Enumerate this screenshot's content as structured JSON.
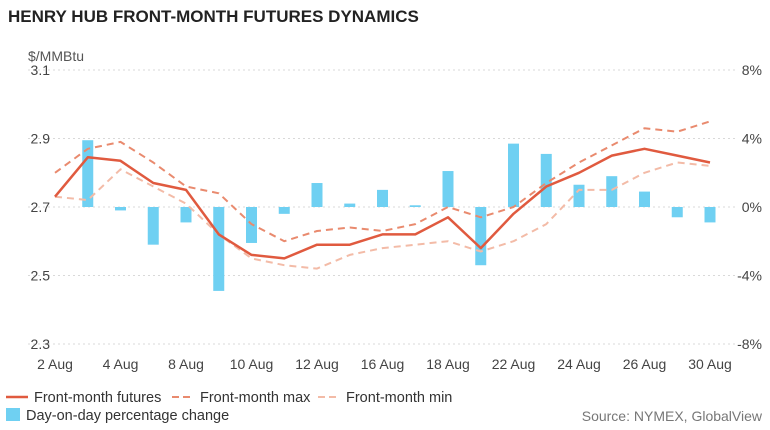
{
  "chart_data": {
    "type": "line",
    "title": "HENRY HUB FRONT-MONTH FUTURES DYNAMICS",
    "ylabel": "$/MMBtu",
    "source": "Source: NYMEX, GlobalView",
    "x_tick_labels": [
      "2 Aug",
      "4 Aug",
      "8 Aug",
      "10 Aug",
      "12 Aug",
      "16 Aug",
      "18 Aug",
      "22 Aug",
      "24 Aug",
      "26 Aug",
      "30 Aug"
    ],
    "left_axis": {
      "ylim": [
        2.3,
        3.1
      ],
      "ticks": [
        "2.3",
        "2.5",
        "2.7",
        "2.9",
        "3.1"
      ]
    },
    "right_axis": {
      "ylim": [
        -8,
        8
      ],
      "ticks": [
        "-8%",
        "-4%",
        "0%",
        "4%",
        "8%"
      ]
    },
    "grid": true,
    "legend_position": "bottom",
    "colors": {
      "futures": "#e05a3f",
      "max": "#e98a6e",
      "min": "#f3bba7",
      "change": "#6fd0f2"
    },
    "series": [
      {
        "name": "Front-month futures",
        "style": "solid",
        "values": [
          2.73,
          2.845,
          2.835,
          2.77,
          2.75,
          2.62,
          2.56,
          2.55,
          2.59,
          2.59,
          2.62,
          2.62,
          2.67,
          2.58,
          2.68,
          2.76,
          2.8,
          2.85,
          2.87,
          2.85,
          2.83
        ]
      },
      {
        "name": "Front-month max",
        "style": "dashed",
        "values": [
          2.8,
          2.87,
          2.89,
          2.83,
          2.76,
          2.74,
          2.65,
          2.6,
          2.63,
          2.64,
          2.63,
          2.65,
          2.7,
          2.67,
          2.7,
          2.77,
          2.83,
          2.88,
          2.93,
          2.92,
          2.95
        ]
      },
      {
        "name": "Front-month min",
        "style": "dashed",
        "values": [
          2.73,
          2.72,
          2.81,
          2.76,
          2.71,
          2.62,
          2.55,
          2.53,
          2.52,
          2.56,
          2.58,
          2.59,
          2.6,
          2.57,
          2.6,
          2.65,
          2.75,
          2.75,
          2.8,
          2.83,
          2.82
        ]
      }
    ],
    "bars": {
      "name": "Day-on-day percentage change",
      "axis": "right",
      "values": [
        3.9,
        -0.2,
        -2.2,
        -0.9,
        -4.9,
        -2.1,
        -0.4,
        1.4,
        0.2,
        1.0,
        0.1,
        2.1,
        -3.4,
        3.7,
        3.1,
        1.3,
        1.8,
        0.9,
        -0.6,
        -0.9
      ]
    }
  }
}
